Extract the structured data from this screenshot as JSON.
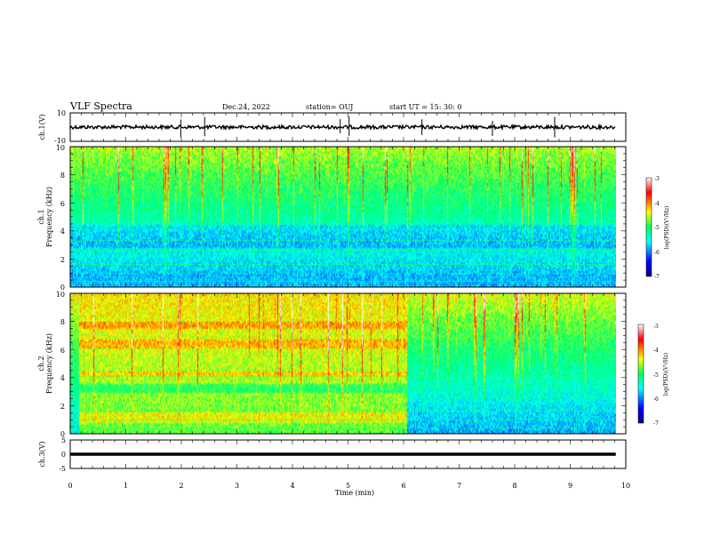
{
  "chart_data": {
    "type": "heatmap",
    "title": "VLF Spectra",
    "date": "Dec.24, 2022",
    "station": "station= OUJ",
    "start_time": "start  UT  =   15: 30: 0",
    "xlabel": "Time  (min)",
    "xlim": [
      0,
      10
    ],
    "x_ticks": [
      "0",
      "1",
      "2",
      "3",
      "4",
      "5",
      "6",
      "7",
      "8",
      "9",
      "10"
    ],
    "panels": [
      {
        "id": "ch1-voltage",
        "type": "line",
        "ylabel": "ch.1(V)",
        "ylim": [
          -10,
          10
        ],
        "y_ticks": [
          "10",
          "-10"
        ],
        "baseline": 0,
        "spike_times_min": [
          1.99,
          2.42,
          4.86,
          5.02,
          6.33,
          7.6,
          8.72
        ]
      },
      {
        "id": "ch1-spectrogram",
        "type": "heatmap",
        "ylabel_line1": "ch.1",
        "ylabel_line2": "Frequency (kHz)",
        "ylim": [
          0,
          10
        ],
        "y_ticks": [
          "0",
          "2",
          "4",
          "6",
          "8",
          "10"
        ],
        "colorbar": {
          "label": "log(PSD)(V²/Hz)",
          "range": [
            -7,
            -3
          ],
          "ticks": [
            "-3",
            "-4",
            "-5",
            "-6",
            "-7"
          ]
        }
      },
      {
        "id": "ch2-spectrogram",
        "type": "heatmap",
        "ylabel_line1": "ch.2",
        "ylabel_line2": "Frequency (kHz)",
        "ylim": [
          0,
          10
        ],
        "y_ticks": [
          "0",
          "2",
          "4",
          "6",
          "8",
          "10"
        ],
        "regime_change_min": 6.05,
        "colorbar": {
          "label": "log(PSD)(V²/Hz)",
          "range": [
            -7,
            -3
          ],
          "ticks": [
            "-3",
            "-4",
            "-5",
            "-6",
            "-7"
          ]
        }
      },
      {
        "id": "ch3-voltage",
        "type": "line",
        "ylabel": "ch.3(V)",
        "ylim": [
          -5,
          5
        ],
        "y_ticks": [
          "5",
          "0",
          "-5"
        ],
        "baseline": 0
      }
    ],
    "x_end_min": 9.82
  }
}
